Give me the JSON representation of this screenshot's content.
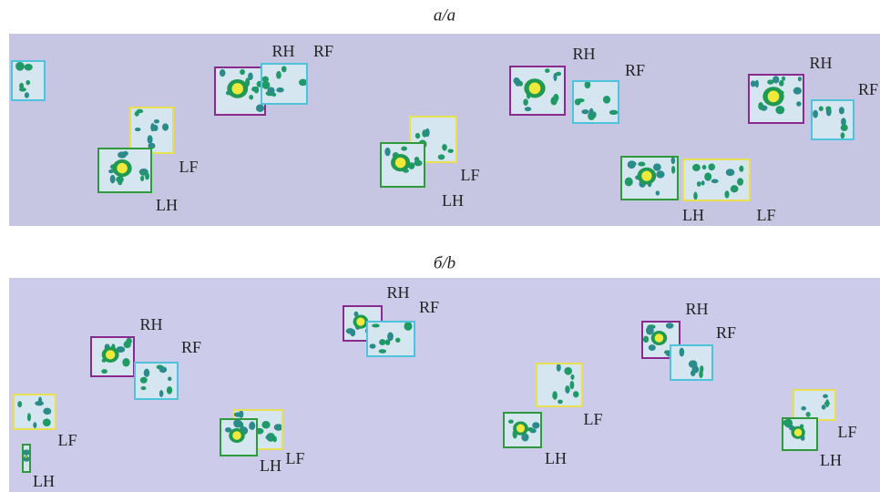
{
  "panels": [
    {
      "title": "а/a",
      "labels": [
        "RH",
        "RF",
        "LF",
        "LH",
        "LF",
        "LH",
        "RH",
        "RF",
        "RH",
        "RF",
        "LH",
        "LF"
      ]
    },
    {
      "title": "б/b",
      "labels": [
        "RH",
        "RF",
        "RH",
        "RF",
        "LF",
        "LH",
        "LH",
        "LF",
        "LF",
        "LH",
        "RH",
        "RF",
        "LF",
        "LH"
      ]
    }
  ]
}
